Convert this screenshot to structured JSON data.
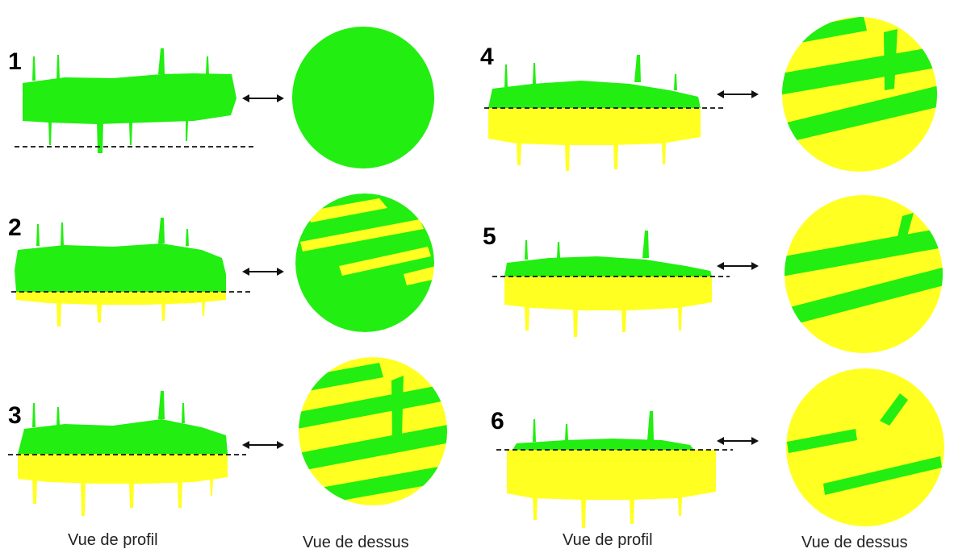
{
  "colors": {
    "green": "#22ee11",
    "yellow": "#ffff22",
    "line": "#111111"
  },
  "panels": [
    {
      "number": "1"
    },
    {
      "number": "2"
    },
    {
      "number": "3"
    },
    {
      "number": "4"
    },
    {
      "number": "5"
    },
    {
      "number": "6"
    }
  ],
  "captions": {
    "left_profile": "Vue de profil",
    "left_top": "Vue de dessus",
    "right_profile": "Vue de profil",
    "right_top": "Vue de dessus"
  }
}
